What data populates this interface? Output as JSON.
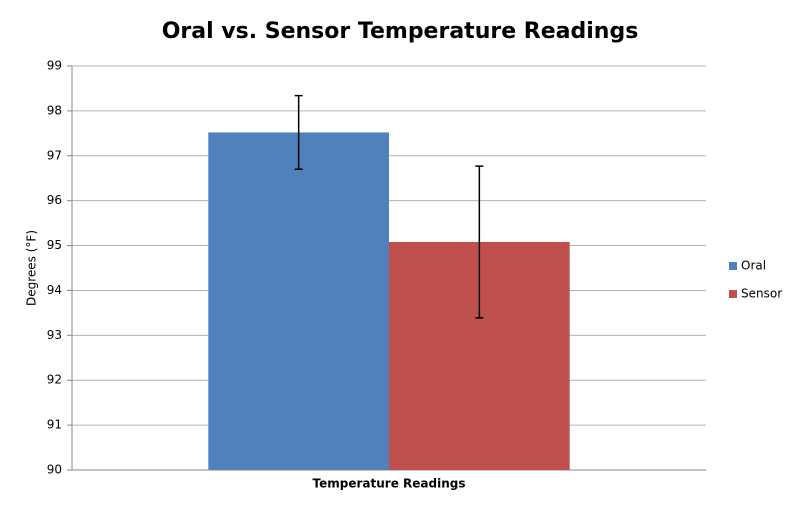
{
  "chart_data": {
    "type": "bar",
    "title": "Oral vs. Sensor Temperature Readings",
    "y_label": "Degrees (°F)",
    "categories": [
      "Temperature Readings"
    ],
    "series": [
      {
        "name": "Oral",
        "color": "#4f81bd",
        "values": [
          97.52
        ],
        "errors": [
          0.82
        ]
      },
      {
        "name": "Sensor",
        "color": "#c0504d",
        "values": [
          95.08
        ],
        "errors": [
          1.69
        ]
      }
    ],
    "ylim": [
      90,
      99
    ],
    "yticks": [
      90,
      91,
      92,
      93,
      94,
      95,
      96,
      97,
      98,
      99
    ],
    "grid": true,
    "legend": "right"
  }
}
